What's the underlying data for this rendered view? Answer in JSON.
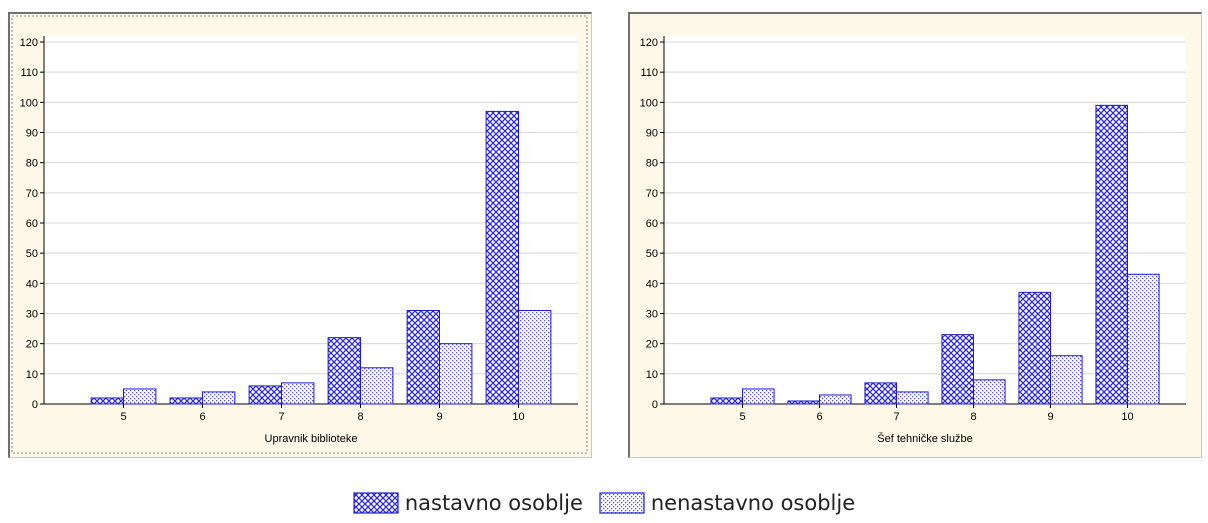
{
  "colors": {
    "bar_stroke": "#1d1dcc",
    "cross_pattern": "#2a2ad8",
    "dot_pattern": "#5555dd",
    "panel_bg": "#fdf8e8",
    "plot_bg": "#ffffff",
    "grid": "#d8d8d8"
  },
  "legend": {
    "items": [
      {
        "label": "nastavno osoblje",
        "pattern": "crosshatch"
      },
      {
        "label": "nenastavno osoblje",
        "pattern": "dotted"
      }
    ]
  },
  "chart_data": [
    {
      "type": "bar",
      "title": "",
      "xlabel": "Upravnik biblioteke",
      "ylabel": "",
      "categories": [
        "5",
        "6",
        "7",
        "8",
        "9",
        "10"
      ],
      "ylim": [
        0,
        120
      ],
      "yticks": [
        0,
        10,
        20,
        30,
        40,
        50,
        60,
        70,
        80,
        90,
        100,
        110,
        120
      ],
      "grid": true,
      "series": [
        {
          "name": "nastavno osoblje",
          "values": [
            2,
            2,
            6,
            22,
            31,
            97
          ]
        },
        {
          "name": "nenastavno osoblje",
          "values": [
            5,
            4,
            7,
            12,
            20,
            31
          ]
        }
      ]
    },
    {
      "type": "bar",
      "title": "",
      "xlabel": "Šef tehničke službe",
      "ylabel": "",
      "categories": [
        "5",
        "6",
        "7",
        "8",
        "9",
        "10"
      ],
      "ylim": [
        0,
        120
      ],
      "yticks": [
        0,
        10,
        20,
        30,
        40,
        50,
        60,
        70,
        80,
        90,
        100,
        110,
        120
      ],
      "grid": true,
      "series": [
        {
          "name": "nastavno osoblje",
          "values": [
            2,
            1,
            7,
            23,
            37,
            99
          ]
        },
        {
          "name": "nenastavno osoblje",
          "values": [
            5,
            3,
            4,
            8,
            16,
            43
          ]
        }
      ]
    }
  ]
}
